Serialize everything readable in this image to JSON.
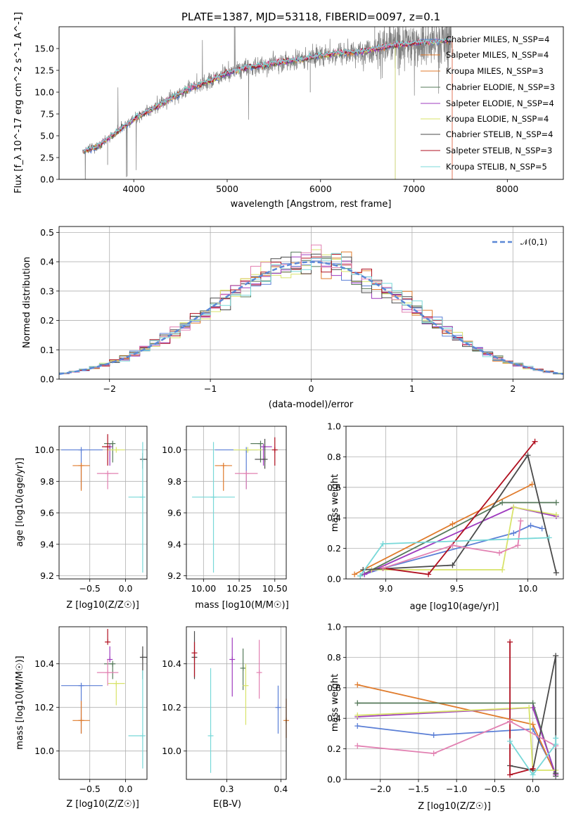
{
  "colors": {
    "blue": "#5b7fd6",
    "orange": "#e07b2c",
    "green": "#55795a",
    "purple": "#9f3bbf",
    "yellow": "#d8e36a",
    "grey": "#4a4a4a",
    "red": "#b01020",
    "pink": "#e281b2",
    "cyan": "#78d8d8",
    "ref": "#5b88d6"
  },
  "chart_data": [
    {
      "type": "line",
      "title": "PLATE=1387, MJD=53118, FIBERID=0097, z=0.1",
      "xlabel": "wavelength [Angstrom, rest frame]",
      "ylabel": "Flux [f_λ 10^-17 erg cm^-2 s^-1 A^-1]",
      "xlim": [
        3200,
        8600
      ],
      "ylim": [
        0,
        17.5
      ],
      "xticks": [
        "4000",
        "5000",
        "6000",
        "7000",
        "8000"
      ],
      "yticks": [
        "0.0",
        "2.5",
        "5.0",
        "7.5",
        "10.0",
        "12.5",
        "15.0"
      ],
      "data_color": "#808080",
      "continuum": {
        "x": [
          3450,
          3600,
          3800,
          4000,
          4200,
          4400,
          4600,
          4800,
          5000,
          5200,
          5400,
          5600,
          5800,
          6000,
          6200,
          6400,
          6600,
          6800,
          7000,
          7200,
          7400
        ],
        "y": [
          3.2,
          3.7,
          5.3,
          6.9,
          8.1,
          9.3,
          10.5,
          11.2,
          12.2,
          12.8,
          13.1,
          13.5,
          13.8,
          14.2,
          14.5,
          14.6,
          15.0,
          15.4,
          15.6,
          15.8,
          15.9
        ]
      },
      "legend_position": "upper right",
      "series": [
        {
          "name": "Chabrier MILES, N_SSP=4",
          "color": "blue"
        },
        {
          "name": "Salpeter MILES, N_SSP=4",
          "color": "orange"
        },
        {
          "name": "Kroupa MILES, N_SSP=3",
          "color": "orange"
        },
        {
          "name": "Chabrier ELODIE, N_SSP=3",
          "color": "green"
        },
        {
          "name": "Salpeter ELODIE, N_SSP=4",
          "color": "purple"
        },
        {
          "name": "Kroupa ELODIE, N_SSP=4",
          "color": "yellow"
        },
        {
          "name": "Chabrier STELIB, N_SSP=4",
          "color": "grey"
        },
        {
          "name": "Salpeter STELIB, N_SSP=3",
          "color": "red"
        },
        {
          "name": "Kroupa STELIB, N_SSP=5",
          "color": "cyan"
        }
      ]
    },
    {
      "type": "bar",
      "xlabel": "(data-model)/error",
      "ylabel": "Normed distribution",
      "xlim": [
        -2.5,
        2.5
      ],
      "ylim": [
        0,
        0.52
      ],
      "xticks": [
        "−2",
        "−1",
        "0",
        "1",
        "2"
      ],
      "yticks": [
        "0.0",
        "0.1",
        "0.2",
        "0.3",
        "0.4",
        "0.5"
      ],
      "bin_width": 0.1,
      "reference": {
        "name": "𝒩(0,1)",
        "color": "ref",
        "dashed": true
      },
      "grid": true
    },
    {
      "type": "scatter",
      "xlabel": "Z [log10(Z/Z☉)]",
      "ylabel": "age [log10(age/yr)]",
      "xlim": [
        -0.93,
        0.3
      ],
      "ylim": [
        9.18,
        10.15
      ],
      "xticks": [
        "−0.5",
        "0.0"
      ],
      "yticks": [
        "9.2",
        "9.4",
        "9.6",
        "9.8",
        "10.0"
      ],
      "points": [
        {
          "c": "blue",
          "x": -0.62,
          "y": 10.0,
          "xe": [
            0.28,
            0.3
          ],
          "ye": [
            0.25,
            0.0
          ]
        },
        {
          "c": "orange",
          "x": -0.62,
          "y": 9.9,
          "xe": [
            0.12,
            0.12
          ],
          "ye": [
            0.16,
            0.0
          ]
        },
        {
          "c": "green",
          "x": -0.18,
          "y": 10.04,
          "xe": [
            0.12,
            0.0
          ],
          "ye": [
            0.12,
            0.0
          ]
        },
        {
          "c": "purple",
          "x": -0.22,
          "y": 10.02,
          "xe": [
            0.0,
            0.0
          ],
          "ye": [
            0.12,
            0.0
          ]
        },
        {
          "c": "yellow",
          "x": -0.13,
          "y": 10.0,
          "xe": [
            0.12,
            0.12
          ],
          "ye": [
            0.0,
            0.0
          ]
        },
        {
          "c": "grey",
          "x": 0.24,
          "y": 9.94,
          "xe": [
            0.0,
            0.06
          ],
          "ye": [
            0.06,
            0.04
          ]
        },
        {
          "c": "red",
          "x": -0.25,
          "y": 10.02,
          "xe": [
            0.08,
            0.0
          ],
          "ye": [
            0.12,
            0.08
          ]
        },
        {
          "c": "pink",
          "x": -0.25,
          "y": 9.85,
          "xe": [
            0.15,
            0.15
          ],
          "ye": [
            0.1,
            0.0
          ]
        },
        {
          "c": "cyan",
          "x": 0.24,
          "y": 9.7,
          "xe": [
            0.2,
            0.0
          ],
          "ye": [
            0.48,
            0.35
          ]
        }
      ]
    },
    {
      "type": "scatter",
      "xlabel": "mass [log10(M/M☉)]",
      "ylabel": "",
      "xlim": [
        9.88,
        10.58
      ],
      "ylim": [
        9.18,
        10.15
      ],
      "xticks": [
        "10.00",
        "10.25",
        "10.50"
      ],
      "yticks": [
        "9.2",
        "9.4",
        "9.6",
        "9.8",
        "10.0"
      ],
      "points": [
        {
          "c": "blue",
          "x": 10.3,
          "y": 10.0,
          "xe": [
            0.22,
            0.08
          ],
          "ye": [
            0.25,
            0.0
          ]
        },
        {
          "c": "orange",
          "x": 10.14,
          "y": 9.9,
          "xe": [
            0.06,
            0.06
          ],
          "ye": [
            0.16,
            0.0
          ]
        },
        {
          "c": "green",
          "x": 10.4,
          "y": 10.04,
          "xe": [
            0.07,
            0.0
          ],
          "ye": [
            0.12,
            0.0
          ]
        },
        {
          "c": "purple",
          "x": 10.42,
          "y": 10.02,
          "xe": [
            0.0,
            0.06
          ],
          "ye": [
            0.12,
            0.0
          ]
        },
        {
          "c": "yellow",
          "x": 10.31,
          "y": 10.0,
          "xe": [
            0.1,
            0.1
          ],
          "ye": [
            0.0,
            0.0
          ]
        },
        {
          "c": "grey",
          "x": 10.43,
          "y": 9.94,
          "xe": [
            0.07,
            0.0
          ],
          "ye": [
            0.06,
            0.13
          ]
        },
        {
          "c": "red",
          "x": 10.5,
          "y": 10.0,
          "xe": [
            0.0,
            0.0
          ],
          "ye": [
            0.1,
            0.08
          ]
        },
        {
          "c": "pink",
          "x": 10.3,
          "y": 9.85,
          "xe": [
            0.08,
            0.08
          ],
          "ye": [
            0.1,
            0.0
          ]
        },
        {
          "c": "cyan",
          "x": 10.07,
          "y": 9.7,
          "xe": [
            0.15,
            0.15
          ],
          "ye": [
            0.48,
            0.35
          ]
        }
      ]
    },
    {
      "type": "line",
      "xlabel": "age [log10(age/yr)]",
      "ylabel": "mass weight",
      "xlim": [
        8.72,
        10.25
      ],
      "ylim": [
        0,
        1
      ],
      "xticks": [
        "9.0",
        "9.5",
        "10.0"
      ],
      "yticks": [
        "0.0",
        "0.2",
        "0.4",
        "0.6",
        "0.8",
        "1.0"
      ],
      "series": [
        {
          "c": "blue",
          "x": [
            8.85,
            8.98,
            9.9,
            10.02,
            10.1
          ],
          "y": [
            0.03,
            0.07,
            0.3,
            0.35,
            0.33
          ]
        },
        {
          "c": "orange",
          "x": [
            8.78,
            9.47,
            10.03
          ],
          "y": [
            0.03,
            0.36,
            0.62
          ]
        },
        {
          "c": "green",
          "x": [
            8.82,
            9.82,
            10.2
          ],
          "y": [
            0.02,
            0.5,
            0.5
          ]
        },
        {
          "c": "purple",
          "x": [
            8.85,
            9.9,
            10.2
          ],
          "y": [
            0.03,
            0.47,
            0.41
          ]
        },
        {
          "c": "yellow",
          "x": [
            8.9,
            9.82,
            9.9,
            10.2
          ],
          "y": [
            0.06,
            0.06,
            0.47,
            0.42
          ]
        },
        {
          "c": "grey",
          "x": [
            8.84,
            9.47,
            10.0,
            10.2
          ],
          "y": [
            0.06,
            0.09,
            0.81,
            0.04
          ]
        },
        {
          "c": "red",
          "x": [
            8.98,
            9.3,
            10.05
          ],
          "y": [
            0.07,
            0.03,
            0.9
          ]
        },
        {
          "c": "pink",
          "x": [
            8.98,
            9.47,
            9.8,
            9.93,
            9.95
          ],
          "y": [
            0.07,
            0.22,
            0.17,
            0.22,
            0.38
          ]
        },
        {
          "c": "cyan",
          "x": [
            8.82,
            8.98,
            10.15
          ],
          "y": [
            0.02,
            0.23,
            0.27
          ]
        }
      ]
    },
    {
      "type": "scatter",
      "xlabel": "Z [log10(Z/Z☉)]",
      "ylabel": "mass [log10(M/M☉)]",
      "xlim": [
        -0.93,
        0.3
      ],
      "ylim": [
        9.87,
        10.57
      ],
      "xticks": [
        "−0.5",
        "0.0"
      ],
      "yticks": [
        "10.0",
        "10.2",
        "10.4"
      ],
      "points": [
        {
          "c": "blue",
          "x": -0.62,
          "y": 10.3,
          "xe": [
            0.28,
            0.3
          ],
          "ye": [
            0.22,
            0.0
          ]
        },
        {
          "c": "orange",
          "x": -0.62,
          "y": 10.14,
          "xe": [
            0.12,
            0.12
          ],
          "ye": [
            0.06,
            0.09
          ]
        },
        {
          "c": "green",
          "x": -0.18,
          "y": 10.4,
          "xe": [
            0.12,
            0.0
          ],
          "ye": [
            0.07,
            0.0
          ]
        },
        {
          "c": "purple",
          "x": -0.22,
          "y": 10.42,
          "xe": [
            0.0,
            0.0
          ],
          "ye": [
            0.0,
            0.06
          ]
        },
        {
          "c": "yellow",
          "x": -0.13,
          "y": 10.31,
          "xe": [
            0.12,
            0.12
          ],
          "ye": [
            0.1,
            0.0
          ]
        },
        {
          "c": "grey",
          "x": 0.24,
          "y": 10.43,
          "xe": [
            0.0,
            0.06
          ],
          "ye": [
            0.1,
            0.05
          ]
        },
        {
          "c": "red",
          "x": -0.25,
          "y": 10.5,
          "xe": [
            0.0,
            0.0
          ],
          "ye": [
            0.0,
            0.06
          ]
        },
        {
          "c": "pink",
          "x": -0.25,
          "y": 10.36,
          "xe": [
            0.15,
            0.15
          ],
          "ye": [
            0.06,
            0.06
          ]
        },
        {
          "c": "cyan",
          "x": 0.24,
          "y": 10.07,
          "xe": [
            0.2,
            0.0
          ],
          "ye": [
            0.15,
            0.3
          ]
        }
      ]
    },
    {
      "type": "scatter",
      "xlabel": "E(B-V)",
      "ylabel": "",
      "xlim": [
        0.225,
        0.41
      ],
      "ylim": [
        9.87,
        10.57
      ],
      "xticks": [
        "0.3",
        "0.4"
      ],
      "yticks": [
        "10.0",
        "10.2",
        "10.4"
      ],
      "points": [
        {
          "c": "blue",
          "x": 0.395,
          "y": 10.2,
          "ylo": 10.08,
          "yhi": 10.3
        },
        {
          "c": "orange",
          "x": 0.41,
          "y": 10.14,
          "ylo": 10.06,
          "yhi": 10.24
        },
        {
          "c": "green",
          "x": 0.33,
          "y": 10.38,
          "ylo": 10.28,
          "yhi": 10.47
        },
        {
          "c": "purple",
          "x": 0.31,
          "y": 10.42,
          "ylo": 10.25,
          "yhi": 10.52
        },
        {
          "c": "yellow",
          "x": 0.335,
          "y": 10.3,
          "ylo": 10.12,
          "yhi": 10.4
        },
        {
          "c": "grey",
          "x": 0.24,
          "y": 10.43,
          "ylo": 10.33,
          "yhi": 10.55
        },
        {
          "c": "red",
          "x": 0.24,
          "y": 10.45,
          "ylo": 10.34,
          "yhi": 10.5
        },
        {
          "c": "pink",
          "x": 0.36,
          "y": 10.36,
          "ylo": 10.24,
          "yhi": 10.51
        },
        {
          "c": "cyan",
          "x": 0.27,
          "y": 10.07,
          "ylo": 9.9,
          "yhi": 10.38
        }
      ]
    },
    {
      "type": "line",
      "xlabel": "Z [log10(Z/Z☉)]",
      "ylabel": "mass weight",
      "xlim": [
        -2.45,
        0.4
      ],
      "ylim": [
        0,
        1
      ],
      "xticks": [
        "−2.0",
        "−1.5",
        "−1.0",
        "−0.5",
        "0.0"
      ],
      "yticks": [
        "0.0",
        "0.2",
        "0.4",
        "0.6",
        "0.8",
        "1.0"
      ],
      "series": [
        {
          "c": "blue",
          "x": [
            -2.3,
            -1.3,
            0.0,
            0.3
          ],
          "y": [
            0.35,
            0.29,
            0.33,
            0.04
          ]
        },
        {
          "c": "orange",
          "x": [
            -2.3,
            0.0,
            0.3
          ],
          "y": [
            0.62,
            0.36,
            0.03
          ]
        },
        {
          "c": "green",
          "x": [
            -2.3,
            0.0,
            0.3
          ],
          "y": [
            0.5,
            0.5,
            0.02
          ]
        },
        {
          "c": "purple",
          "x": [
            -2.3,
            0.0,
            0.3
          ],
          "y": [
            0.41,
            0.47,
            0.03
          ]
        },
        {
          "c": "yellow",
          "x": [
            -2.3,
            -0.05,
            0.0,
            0.3
          ],
          "y": [
            0.42,
            0.47,
            0.06,
            0.06
          ]
        },
        {
          "c": "grey",
          "x": [
            -0.3,
            0.0,
            0.3,
            0.3
          ],
          "y": [
            0.09,
            0.06,
            0.81,
            0.04
          ]
        },
        {
          "c": "red",
          "x": [
            -0.3,
            -0.3,
            0.0
          ],
          "y": [
            0.9,
            0.03,
            0.07
          ]
        },
        {
          "c": "pink",
          "x": [
            -2.3,
            -1.3,
            -0.3,
            0.3
          ],
          "y": [
            0.22,
            0.17,
            0.38,
            0.22
          ]
        },
        {
          "c": "cyan",
          "x": [
            -0.3,
            0.0,
            0.3,
            0.3
          ],
          "y": [
            0.25,
            0.03,
            0.23,
            0.27
          ]
        }
      ]
    }
  ]
}
